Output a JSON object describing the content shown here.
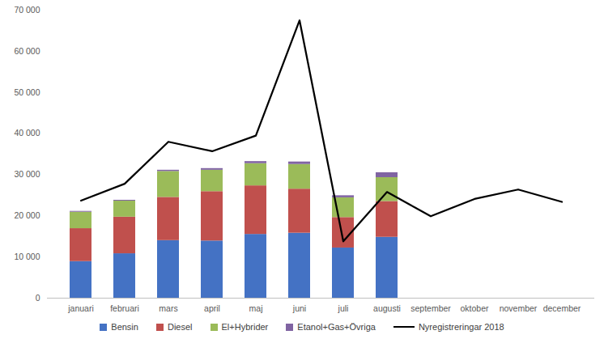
{
  "chart_data": {
    "type": "bar",
    "stacked": true,
    "grid": false,
    "legend": "bottom",
    "categories": [
      "januari",
      "februari",
      "mars",
      "april",
      "maj",
      "juni",
      "juli",
      "augusti",
      "september",
      "oktober",
      "november",
      "december"
    ],
    "ylim": [
      0,
      70000
    ],
    "yticks": [
      0,
      {
        "value": 10000,
        "label": "10 000"
      },
      {
        "value": 20000,
        "label": "20 000"
      },
      {
        "value": 30000,
        "label": "30 000"
      },
      {
        "value": 40000,
        "label": "40 000"
      },
      {
        "value": 50000,
        "label": "50 000"
      },
      {
        "value": 60000,
        "label": "60 000"
      },
      {
        "value": 70000,
        "label": "70 000"
      }
    ],
    "series": [
      {
        "name": "Bensin",
        "type": "bar",
        "color": "#4472c4",
        "values": [
          8900,
          10800,
          14000,
          13900,
          15500,
          15800,
          12200,
          14800,
          null,
          null,
          null,
          null
        ]
      },
      {
        "name": "Diesel",
        "type": "bar",
        "color": "#c0504d",
        "values": [
          8000,
          8900,
          10500,
          12000,
          11800,
          10700,
          7400,
          8700,
          null,
          null,
          null,
          null
        ]
      },
      {
        "name": "El+Hybrider",
        "type": "bar",
        "color": "#9bbb59",
        "values": [
          4000,
          3900,
          6300,
          5200,
          5400,
          6000,
          4800,
          5800,
          null,
          null,
          null,
          null
        ]
      },
      {
        "name": "Etanol+Gas+Övriga",
        "type": "bar",
        "color": "#8064a2",
        "values": [
          200,
          200,
          300,
          400,
          500,
          600,
          500,
          1200,
          null,
          null,
          null,
          null
        ]
      },
      {
        "name": "Nyregistreringar 2018",
        "type": "line",
        "color": "#000000",
        "values": [
          23700,
          27800,
          38000,
          35700,
          39500,
          67500,
          13800,
          25800,
          19900,
          24100,
          26400,
          23400
        ]
      }
    ]
  }
}
